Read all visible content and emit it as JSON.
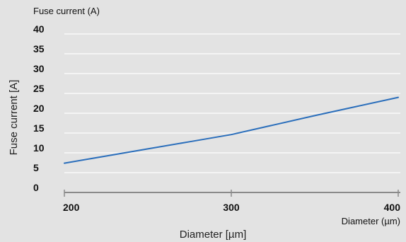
{
  "colors": {
    "background": "#e3e3e3",
    "gridline": "#ffffff",
    "axis": "#8a8a8a",
    "series_line": "#2a6ebb",
    "text": "#111111"
  },
  "chart_data": {
    "type": "line",
    "top_left_label": "Fuse current (A)",
    "ylabel": "Fuse current [A]",
    "xlabel": "Diameter [µm]",
    "x_unit_label": "Diameter (µm)",
    "xlim": [
      200,
      400
    ],
    "ylim": [
      0,
      40
    ],
    "x_ticks": [
      200,
      300,
      400
    ],
    "y_ticks": [
      0,
      5,
      10,
      15,
      20,
      25,
      30,
      35,
      40
    ],
    "grid": true,
    "series": [
      {
        "x": [
          200,
          225,
          250,
          275,
          300,
          325,
          350,
          375,
          400
        ],
        "y": [
          7.4,
          9.2,
          11.0,
          12.8,
          14.6,
          17.0,
          19.4,
          21.7,
          24.0
        ]
      }
    ]
  }
}
